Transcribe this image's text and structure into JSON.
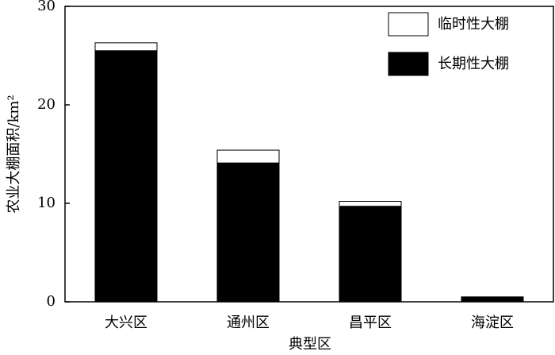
{
  "chart_data": {
    "type": "stacked-bar",
    "x_label": "典型区",
    "y_label": "农业大棚面积/km²",
    "categories": [
      "大兴区",
      "通州区",
      "昌平区",
      "海淀区"
    ],
    "series": [
      {
        "name": "长期性大棚",
        "color": "#000000",
        "values": [
          25.5,
          14.1,
          9.7,
          0.5
        ]
      },
      {
        "name": "临时性大棚",
        "color": "#ffffff",
        "values": [
          0.8,
          1.3,
          0.5,
          0
        ]
      }
    ],
    "ylim": [
      0,
      30
    ],
    "yticks": [
      0,
      10,
      20,
      30
    ],
    "legend": "upper-right"
  }
}
